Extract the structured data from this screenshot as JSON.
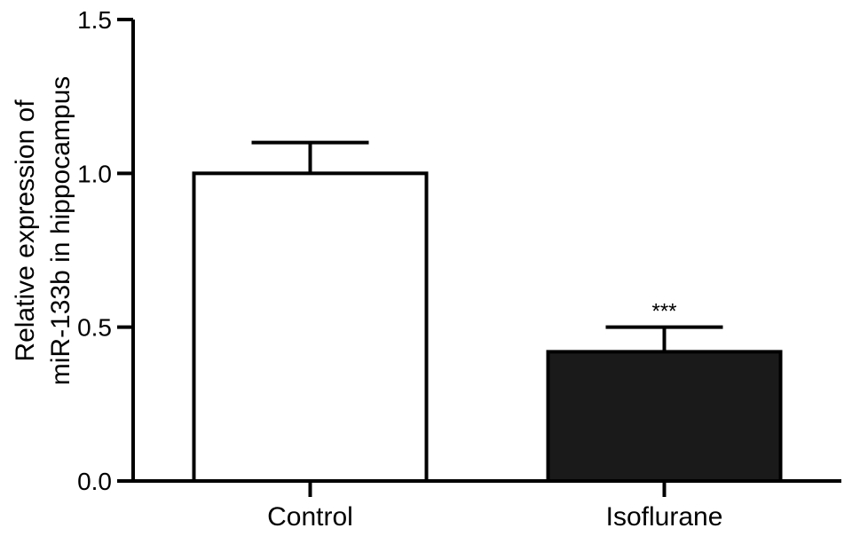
{
  "chart_data": {
    "type": "bar",
    "categories": [
      "Control",
      "Isoflurane"
    ],
    "values": [
      1.0,
      0.42
    ],
    "errors": [
      0.1,
      0.08
    ],
    "fills": [
      "#ffffff",
      "#1a1a1a"
    ],
    "annotations": [
      "",
      "***"
    ],
    "ylabel_lines": [
      "Relative expression of",
      "miR-133b in hippocampus"
    ],
    "ylim": [
      0,
      1.5
    ],
    "yticks": [
      0.0,
      0.5,
      1.0,
      1.5
    ],
    "ytick_labels": [
      "0.0",
      "0.5",
      "1.0",
      "1.5"
    ],
    "grid": false
  }
}
